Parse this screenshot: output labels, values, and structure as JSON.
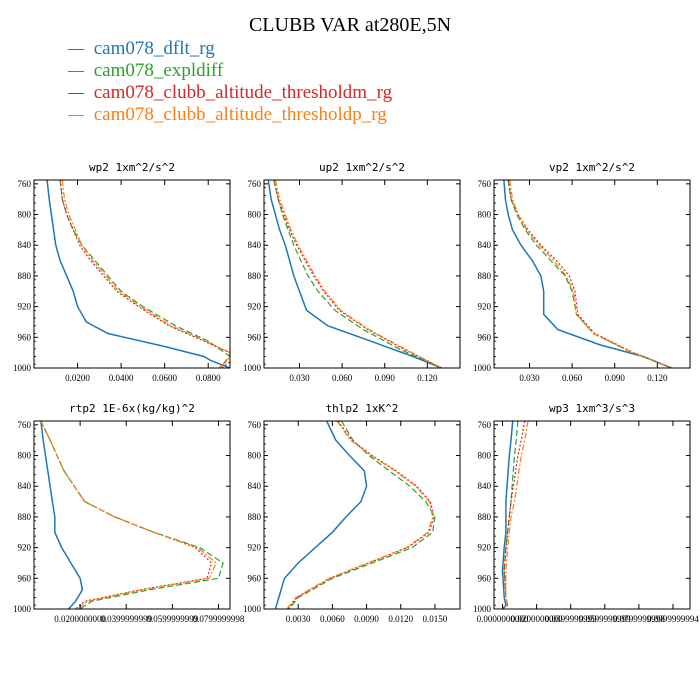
{
  "title": "CLUBB VAR at280E,5N",
  "legend": [
    {
      "label": "cam078_dflt_rg",
      "color": "#1f77b4",
      "dash": "solid"
    },
    {
      "label": "cam078_expldiff",
      "color": "#2ca02c",
      "dash": "dashed"
    },
    {
      "label": "cam078_clubb_altitude_thresholdm_rg",
      "color": "#d62728",
      "dash": "dotted"
    },
    {
      "label": "cam078_clubb_altitude_thresholdp_rg",
      "color": "#ff7f0e",
      "dash": "dashdot"
    }
  ],
  "chart_data": [
    {
      "type": "line",
      "title": "wp2  1xm^2/s^2",
      "ylabel": "",
      "xlabel": "",
      "y_ticks": [
        760,
        800,
        840,
        880,
        920,
        960,
        1000
      ],
      "x_ticks": [
        0.02,
        0.04,
        0.06,
        0.08
      ],
      "x_tick_labels": [
        "0.0200",
        "0.0400",
        "0.0600",
        "0.0800"
      ],
      "xlim": [
        0.0,
        0.09
      ],
      "ylim": [
        1000,
        755
      ],
      "series": [
        {
          "name": "cam078_dflt_rg",
          "x": [
            0.006,
            0.007,
            0.008,
            0.009,
            0.01,
            0.012,
            0.015,
            0.018,
            0.02,
            0.024,
            0.034,
            0.06,
            0.078,
            0.081,
            0.09
          ],
          "y": [
            755,
            780,
            800,
            820,
            840,
            860,
            880,
            900,
            920,
            940,
            955,
            972,
            985,
            990,
            1000
          ]
        },
        {
          "name": "cam078_expldiff",
          "x": [
            0.012,
            0.013,
            0.015,
            0.018,
            0.022,
            0.028,
            0.034,
            0.04,
            0.05,
            0.065,
            0.08,
            0.09,
            0.085
          ],
          "y": [
            755,
            780,
            800,
            820,
            840,
            860,
            880,
            900,
            920,
            945,
            965,
            985,
            1000
          ]
        },
        {
          "name": "cam078_clubb_altitude_thresholdm_rg",
          "x": [
            0.012,
            0.013,
            0.015,
            0.018,
            0.021,
            0.026,
            0.032,
            0.038,
            0.048,
            0.062,
            0.078,
            0.09,
            0.091,
            0.086
          ],
          "y": [
            755,
            780,
            800,
            820,
            840,
            860,
            880,
            900,
            920,
            945,
            965,
            980,
            990,
            1000
          ]
        },
        {
          "name": "cam078_clubb_altitude_thresholdp_rg",
          "x": [
            0.013,
            0.014,
            0.016,
            0.019,
            0.022,
            0.027,
            0.033,
            0.039,
            0.049,
            0.063,
            0.079,
            0.09,
            0.089,
            0.085
          ],
          "y": [
            755,
            780,
            800,
            820,
            840,
            860,
            880,
            900,
            920,
            945,
            965,
            980,
            990,
            1000
          ]
        }
      ]
    },
    {
      "type": "line",
      "title": "up2  1xm^2/s^2",
      "ylabel": "",
      "xlabel": "",
      "y_ticks": [
        760,
        800,
        840,
        880,
        920,
        960,
        1000
      ],
      "x_ticks": [
        0.03,
        0.06,
        0.09,
        0.12
      ],
      "x_tick_labels": [
        "0.030",
        "0.060",
        "0.090",
        "0.120"
      ],
      "xlim": [
        0.005,
        0.143
      ],
      "ylim": [
        1000,
        755
      ],
      "series": [
        {
          "name": "cam078_dflt_rg",
          "x": [
            0.008,
            0.01,
            0.013,
            0.016,
            0.02,
            0.023,
            0.026,
            0.03,
            0.035,
            0.05,
            0.08,
            0.11,
            0.13
          ],
          "y": [
            755,
            780,
            800,
            820,
            840,
            860,
            880,
            900,
            925,
            945,
            965,
            985,
            1000
          ]
        },
        {
          "name": "cam078_expldiff",
          "x": [
            0.012,
            0.015,
            0.018,
            0.022,
            0.026,
            0.031,
            0.036,
            0.043,
            0.055,
            0.075,
            0.1,
            0.13
          ],
          "y": [
            755,
            780,
            800,
            820,
            840,
            860,
            880,
            900,
            925,
            950,
            975,
            1000
          ]
        },
        {
          "name": "cam078_clubb_altitude_thresholdm_rg",
          "x": [
            0.012,
            0.015,
            0.019,
            0.023,
            0.028,
            0.034,
            0.04,
            0.047,
            0.058,
            0.078,
            0.103,
            0.13
          ],
          "y": [
            755,
            780,
            800,
            820,
            840,
            860,
            880,
            900,
            925,
            950,
            975,
            1000
          ]
        },
        {
          "name": "cam078_clubb_altitude_thresholdp_rg",
          "x": [
            0.013,
            0.016,
            0.02,
            0.024,
            0.029,
            0.035,
            0.041,
            0.048,
            0.059,
            0.079,
            0.104,
            0.13
          ],
          "y": [
            755,
            780,
            800,
            820,
            840,
            860,
            880,
            900,
            925,
            950,
            975,
            1000
          ]
        }
      ]
    },
    {
      "type": "line",
      "title": "vp2  1xm^2/s^2",
      "ylabel": "",
      "xlabel": "",
      "y_ticks": [
        760,
        800,
        840,
        880,
        920,
        960,
        1000
      ],
      "x_ticks": [
        0.03,
        0.06,
        0.09,
        0.12
      ],
      "x_tick_labels": [
        "0.030",
        "0.060",
        "0.090",
        "0.120"
      ],
      "xlim": [
        0.005,
        0.143
      ],
      "ylim": [
        1000,
        755
      ],
      "series": [
        {
          "name": "cam078_dflt_rg",
          "x": [
            0.012,
            0.013,
            0.015,
            0.018,
            0.024,
            0.032,
            0.038,
            0.04,
            0.04,
            0.05,
            0.08,
            0.11,
            0.13
          ],
          "y": [
            755,
            780,
            800,
            820,
            840,
            860,
            880,
            900,
            930,
            950,
            970,
            985,
            1000
          ]
        },
        {
          "name": "cam078_expldiff",
          "x": [
            0.015,
            0.017,
            0.021,
            0.027,
            0.035,
            0.045,
            0.055,
            0.06,
            0.063,
            0.075,
            0.1,
            0.13
          ],
          "y": [
            755,
            780,
            800,
            820,
            840,
            860,
            880,
            900,
            930,
            955,
            978,
            1000
          ]
        },
        {
          "name": "cam078_clubb_altitude_thresholdm_rg",
          "x": [
            0.015,
            0.017,
            0.022,
            0.029,
            0.038,
            0.049,
            0.058,
            0.062,
            0.064,
            0.076,
            0.101,
            0.13
          ],
          "y": [
            755,
            780,
            800,
            820,
            840,
            860,
            880,
            900,
            930,
            955,
            978,
            1000
          ]
        },
        {
          "name": "cam078_clubb_altitude_thresholdp_rg",
          "x": [
            0.016,
            0.018,
            0.022,
            0.028,
            0.037,
            0.047,
            0.056,
            0.061,
            0.063,
            0.075,
            0.1,
            0.13
          ],
          "y": [
            755,
            780,
            800,
            820,
            840,
            860,
            880,
            900,
            930,
            955,
            978,
            1000
          ]
        }
      ]
    },
    {
      "type": "line",
      "title": "rtp2  1E-6x(kg/kg)^2",
      "ylabel": "",
      "xlabel": "",
      "y_ticks": [
        760,
        800,
        840,
        880,
        920,
        960,
        1000
      ],
      "x_ticks": [
        0.02,
        0.04,
        0.06,
        0.08
      ],
      "x_tick_labels": [
        "0.0200000000",
        "0.0399999999",
        "0.0599999999",
        "0.0799999998"
      ],
      "xlim": [
        0.0,
        0.085
      ],
      "ylim": [
        1000,
        755
      ],
      "series": [
        {
          "name": "cam078_dflt_rg",
          "x": [
            0.003,
            0.004,
            0.006,
            0.008,
            0.009,
            0.009,
            0.012,
            0.016,
            0.02,
            0.021,
            0.018,
            0.015
          ],
          "y": [
            755,
            780,
            820,
            860,
            880,
            900,
            920,
            940,
            960,
            975,
            990,
            1000
          ]
        },
        {
          "name": "cam078_expldiff",
          "x": [
            0.003,
            0.007,
            0.013,
            0.022,
            0.035,
            0.052,
            0.072,
            0.082,
            0.08,
            0.05,
            0.025,
            0.02
          ],
          "y": [
            755,
            780,
            820,
            860,
            880,
            900,
            920,
            940,
            960,
            975,
            990,
            1000
          ]
        },
        {
          "name": "cam078_clubb_altitude_thresholdm_rg",
          "x": [
            0.003,
            0.007,
            0.013,
            0.022,
            0.035,
            0.052,
            0.07,
            0.077,
            0.075,
            0.046,
            0.022,
            0.018
          ],
          "y": [
            755,
            780,
            820,
            860,
            880,
            900,
            920,
            940,
            960,
            975,
            990,
            1000
          ]
        },
        {
          "name": "cam078_clubb_altitude_thresholdp_rg",
          "x": [
            0.003,
            0.007,
            0.013,
            0.022,
            0.035,
            0.052,
            0.071,
            0.079,
            0.076,
            0.047,
            0.023,
            0.019
          ],
          "y": [
            755,
            780,
            820,
            860,
            880,
            900,
            920,
            940,
            960,
            975,
            990,
            1000
          ]
        }
      ]
    },
    {
      "type": "line",
      "title": "thlp2  1xK^2",
      "ylabel": "",
      "xlabel": "",
      "y_ticks": [
        760,
        800,
        840,
        880,
        920,
        960,
        1000
      ],
      "x_ticks": [
        0.003,
        0.006,
        0.009,
        0.012,
        0.015
      ],
      "x_tick_labels": [
        "0.0030",
        "0.0060",
        "0.0090",
        "0.0120",
        "0.0150"
      ],
      "xlim": [
        0.0,
        0.0172
      ],
      "ylim": [
        1000,
        755
      ],
      "series": [
        {
          "name": "cam078_dflt_rg",
          "x": [
            0.0055,
            0.0063,
            0.0075,
            0.0088,
            0.009,
            0.0085,
            0.0072,
            0.006,
            0.0045,
            0.003,
            0.0018,
            0.001
          ],
          "y": [
            755,
            780,
            800,
            820,
            840,
            860,
            880,
            900,
            920,
            940,
            960,
            1000
          ]
        },
        {
          "name": "cam078_expldiff",
          "x": [
            0.0068,
            0.0078,
            0.0092,
            0.011,
            0.0128,
            0.0142,
            0.015,
            0.0148,
            0.013,
            0.0095,
            0.006,
            0.003,
            0.0022
          ],
          "y": [
            755,
            780,
            800,
            820,
            840,
            860,
            880,
            900,
            920,
            940,
            960,
            985,
            1000
          ]
        },
        {
          "name": "cam078_clubb_altitude_thresholdm_rg",
          "x": [
            0.0065,
            0.0077,
            0.0095,
            0.0116,
            0.0134,
            0.0146,
            0.0149,
            0.0145,
            0.0126,
            0.0092,
            0.0058,
            0.0029,
            0.0021
          ],
          "y": [
            755,
            780,
            800,
            820,
            840,
            860,
            880,
            900,
            920,
            940,
            960,
            985,
            1000
          ]
        },
        {
          "name": "cam078_clubb_altitude_thresholdp_rg",
          "x": [
            0.0064,
            0.0076,
            0.0094,
            0.0115,
            0.0133,
            0.0145,
            0.0148,
            0.0144,
            0.0125,
            0.0091,
            0.0057,
            0.0028,
            0.002
          ],
          "y": [
            755,
            780,
            800,
            820,
            840,
            860,
            880,
            900,
            920,
            940,
            960,
            985,
            1000
          ]
        }
      ]
    },
    {
      "type": "line",
      "title": "wp3  1xm^3/s^3",
      "ylabel": "",
      "xlabel": "",
      "y_ticks": [
        760,
        800,
        840,
        880,
        920,
        960,
        1000
      ],
      "x_ticks": [
        0.0,
        0.02,
        0.04,
        0.06,
        0.08,
        0.1
      ],
      "x_tick_labels": [
        "0.0000000000",
        "0.0200000000",
        "0.0399999999",
        "0.0599999999",
        "0.0799999998",
        "0.0999999994"
      ],
      "xlim": [
        -0.005,
        0.11
      ],
      "ylim": [
        1000,
        755
      ],
      "series": [
        {
          "name": "cam078_dflt_rg",
          "x": [
            0.006,
            0.005,
            0.004,
            0.003,
            0.002,
            0.002,
            0.002,
            0.001,
            0.0,
            0.001,
            0.002,
            0.0
          ],
          "y": [
            755,
            780,
            800,
            830,
            860,
            880,
            900,
            920,
            950,
            985,
            995,
            1000
          ]
        },
        {
          "name": "cam078_expldiff",
          "x": [
            0.009,
            0.008,
            0.007,
            0.006,
            0.005,
            0.004,
            0.003,
            0.002,
            0.001,
            0.002,
            0.003,
            0.0
          ],
          "y": [
            755,
            780,
            800,
            830,
            860,
            880,
            900,
            920,
            950,
            985,
            995,
            1000
          ]
        },
        {
          "name": "cam078_clubb_altitude_thresholdm_rg",
          "x": [
            0.013,
            0.011,
            0.009,
            0.007,
            0.005,
            0.004,
            0.003,
            0.002,
            0.001,
            0.002,
            0.003,
            0.0
          ],
          "y": [
            755,
            780,
            800,
            830,
            860,
            880,
            900,
            920,
            950,
            985,
            995,
            1000
          ]
        },
        {
          "name": "cam078_clubb_altitude_thresholdp_rg",
          "x": [
            0.015,
            0.013,
            0.011,
            0.009,
            0.007,
            0.005,
            0.004,
            0.003,
            0.002,
            0.002,
            0.003,
            0.0
          ],
          "y": [
            755,
            780,
            800,
            830,
            860,
            880,
            900,
            920,
            950,
            985,
            995,
            1000
          ]
        }
      ]
    }
  ]
}
